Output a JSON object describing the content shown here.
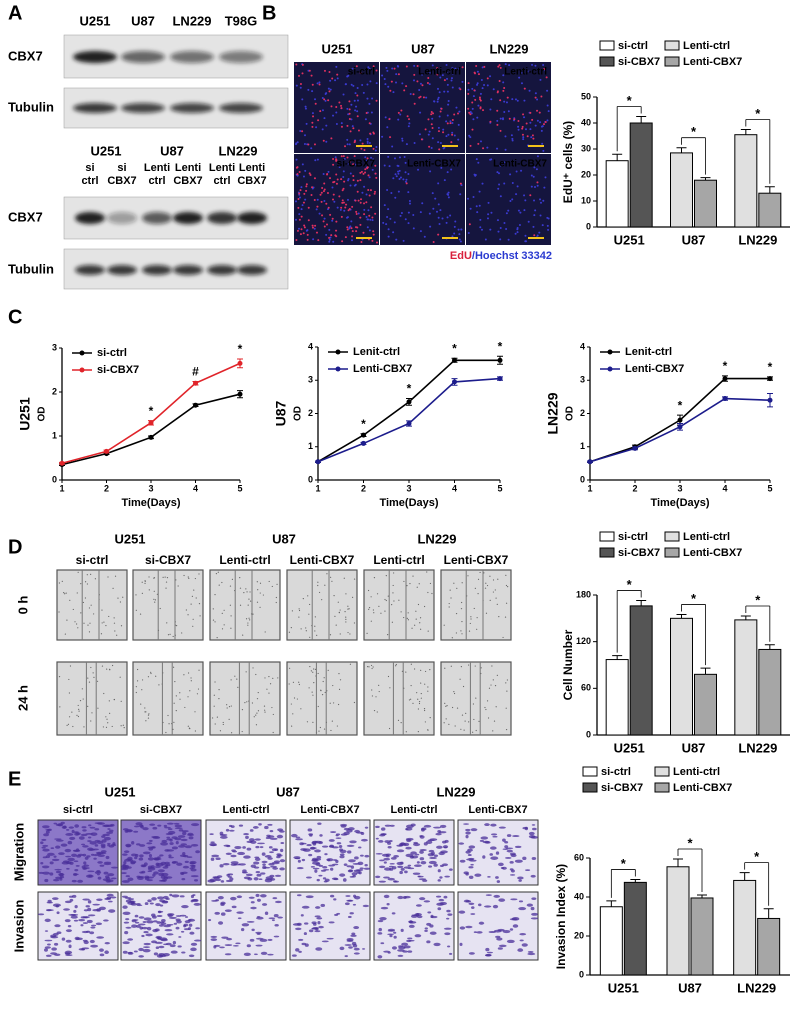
{
  "chart_data": [
    {
      "type": "bar",
      "ylabel": "EdU⁺ cells (%)",
      "categories": [
        "U251",
        "U87",
        "LN229"
      ],
      "series": [
        {
          "name": "si-ctrl",
          "color": "#ffffff",
          "values": [
            25.5,
            null,
            null
          ],
          "errors": [
            2.5,
            null,
            null
          ]
        },
        {
          "name": "si-CBX7",
          "color": "#555555",
          "values": [
            40,
            null,
            null
          ],
          "errors": [
            2.5,
            null,
            null
          ]
        },
        {
          "name": "Lenti-ctrl",
          "color": "#e0e0e0",
          "values": [
            null,
            28.5,
            35.5
          ],
          "errors": [
            null,
            2,
            2
          ]
        },
        {
          "name": "Lenti-CBX7",
          "color": "#a6a6a6",
          "values": [
            null,
            18,
            13
          ],
          "errors": [
            null,
            1,
            2.5
          ]
        }
      ],
      "ylim": [
        0,
        50
      ],
      "yticks": [
        0,
        10,
        20,
        30,
        40,
        50
      ],
      "annotations": [
        "*",
        "*",
        "*"
      ]
    },
    {
      "type": "line",
      "row_label": "U251",
      "ylabel": "OD",
      "xlabel": "Time(Days)",
      "x": [
        1,
        2,
        3,
        4,
        5
      ],
      "series": [
        {
          "name": "si-ctrl",
          "color": "#000000",
          "values": [
            0.35,
            0.6,
            0.97,
            1.7,
            1.95
          ],
          "errors": [
            0.02,
            0.02,
            0.03,
            0.03,
            0.08
          ]
        },
        {
          "name": "si-CBX7",
          "color": "#e0242a",
          "values": [
            0.38,
            0.65,
            1.3,
            2.2,
            2.65
          ],
          "errors": [
            0.02,
            0.03,
            0.05,
            0.04,
            0.1
          ]
        }
      ],
      "xlim": [
        1,
        5
      ],
      "xticks": [
        1,
        2,
        3,
        4,
        5
      ],
      "ylim": [
        0,
        3
      ],
      "yticks": [
        0,
        1,
        2,
        3
      ],
      "annotations": [
        {
          "x": 3,
          "text": "*"
        },
        {
          "x": 4,
          "text": "#"
        },
        {
          "x": 5,
          "text": "*"
        }
      ]
    },
    {
      "type": "line",
      "row_label": "U87",
      "ylabel": "OD",
      "xlabel": "Time(Days)",
      "x": [
        1,
        2,
        3,
        4,
        5
      ],
      "series": [
        {
          "name": "Lenit-ctrl",
          "color": "#000000",
          "values": [
            0.55,
            1.35,
            2.35,
            3.6,
            3.6
          ],
          "errors": [
            0.02,
            0.04,
            0.1,
            0.06,
            0.12
          ]
        },
        {
          "name": "Lenti-CBX7",
          "color": "#1c1c8c",
          "values": [
            0.55,
            1.1,
            1.7,
            2.95,
            3.05
          ],
          "errors": [
            0.02,
            0.03,
            0.08,
            0.1,
            0.05
          ]
        }
      ],
      "xlim": [
        1,
        5
      ],
      "xticks": [
        1,
        2,
        3,
        4,
        5
      ],
      "ylim": [
        0,
        4
      ],
      "yticks": [
        0,
        1,
        2,
        3,
        4
      ],
      "annotations": [
        {
          "x": 2,
          "text": "*"
        },
        {
          "x": 3,
          "text": "*"
        },
        {
          "x": 4,
          "text": "*"
        },
        {
          "x": 5,
          "text": "*"
        }
      ]
    },
    {
      "type": "line",
      "row_label": "LN229",
      "ylabel": "OD",
      "xlabel": "Time(Days)",
      "x": [
        1,
        2,
        3,
        4,
        5
      ],
      "series": [
        {
          "name": "Lenit-ctrl",
          "color": "#000000",
          "values": [
            0.55,
            1.0,
            1.8,
            3.05,
            3.05
          ],
          "errors": [
            0.02,
            0.05,
            0.15,
            0.08,
            0.05
          ]
        },
        {
          "name": "Lenti-CBX7",
          "color": "#1c1c8c",
          "values": [
            0.55,
            0.95,
            1.6,
            2.45,
            2.4
          ],
          "errors": [
            0.02,
            0.04,
            0.1,
            0.05,
            0.2
          ]
        }
      ],
      "xlim": [
        1,
        5
      ],
      "xticks": [
        1,
        2,
        3,
        4,
        5
      ],
      "ylim": [
        0,
        4
      ],
      "yticks": [
        0,
        1,
        2,
        3,
        4
      ],
      "annotations": [
        {
          "x": 3,
          "text": "*"
        },
        {
          "x": 4,
          "text": "*"
        },
        {
          "x": 5,
          "text": "*"
        }
      ]
    },
    {
      "type": "bar",
      "ylabel": "Cell Number",
      "categories": [
        "U251",
        "U87",
        "LN229"
      ],
      "series": [
        {
          "name": "si-ctrl",
          "color": "#ffffff",
          "values": [
            97,
            null,
            null
          ],
          "errors": [
            5,
            null,
            null
          ]
        },
        {
          "name": "si-CBX7",
          "color": "#555555",
          "values": [
            166,
            null,
            null
          ],
          "errors": [
            7,
            null,
            null
          ]
        },
        {
          "name": "Lenti-ctrl",
          "color": "#e0e0e0",
          "values": [
            null,
            150,
            148
          ],
          "errors": [
            null,
            5,
            5
          ]
        },
        {
          "name": "Lenti-CBX7",
          "color": "#a6a6a6",
          "values": [
            null,
            78,
            110
          ],
          "errors": [
            null,
            8,
            6
          ]
        }
      ],
      "ylim": [
        0,
        180
      ],
      "yticks": [
        0,
        60,
        120,
        180
      ],
      "annotations": [
        "*",
        "*",
        "*"
      ]
    },
    {
      "type": "bar",
      "ylabel": "Invasion Index (%)",
      "categories": [
        "U251",
        "U87",
        "LN229"
      ],
      "series": [
        {
          "name": "si-ctrl",
          "color": "#ffffff",
          "values": [
            35,
            null,
            null
          ],
          "errors": [
            3,
            null,
            null
          ]
        },
        {
          "name": "si-CBX7",
          "color": "#555555",
          "values": [
            47.5,
            null,
            null
          ],
          "errors": [
            1.5,
            null,
            null
          ]
        },
        {
          "name": "Lenti-ctrl",
          "color": "#e0e0e0",
          "values": [
            null,
            55.5,
            48.5
          ],
          "errors": [
            null,
            4,
            4
          ]
        },
        {
          "name": "Lenti-CBX7",
          "color": "#a6a6a6",
          "values": [
            null,
            39.5,
            29
          ],
          "errors": [
            null,
            1.5,
            5
          ]
        }
      ],
      "ylim": [
        0,
        60
      ],
      "yticks": [
        0,
        20,
        40,
        60
      ],
      "annotations": [
        "*",
        "*",
        "*"
      ]
    }
  ],
  "figure": {
    "panel_labels": [
      "A",
      "B",
      "C",
      "D",
      "E"
    ],
    "blot_a_top": {
      "cells": [
        "U251",
        "U87",
        "LN229",
        "T98G"
      ],
      "rows": [
        "CBX7",
        "Tubulin"
      ]
    },
    "blot_a_bottom": {
      "groups": [
        "U251",
        "U87",
        "LN229"
      ],
      "lanes": [
        [
          "si",
          "ctrl"
        ],
        [
          "si",
          "CBX7"
        ],
        [
          "Lenti",
          "ctrl"
        ],
        [
          "Lenti",
          "CBX7"
        ],
        [
          "Lenti",
          "ctrl"
        ],
        [
          "Lenti",
          "CBX7"
        ]
      ],
      "rows": [
        "CBX7",
        "Tubulin"
      ]
    },
    "edu_images": {
      "columns": [
        "U251",
        "U87",
        "LN229"
      ],
      "labels": [
        "si-ctrl",
        "Lenti-ctrl",
        "Lenti-ctrl",
        "si-CBX7",
        "Lenti-CBX7",
        "Lenti-CBX7"
      ],
      "stain": [
        "EdU",
        "/Hoechst 33342"
      ]
    },
    "wound": {
      "groups": [
        "U251",
        "U87",
        "LN229"
      ],
      "columns": [
        "si-ctrl",
        "si-CBX7",
        "Lenti-ctrl",
        "Lenti-CBX7",
        "Lenti-ctrl",
        "Lenti-CBX7"
      ],
      "rows": [
        "0 h",
        "24 h"
      ]
    },
    "transwell": {
      "groups": [
        "U251",
        "U87",
        "LN229"
      ],
      "columns": [
        "si-ctrl",
        "si-CBX7",
        "Lenti-ctrl",
        "Lenti-CBX7",
        "Lenti-ctrl",
        "Lenti-CBX7"
      ],
      "rows": [
        "Migration",
        "Invasion"
      ]
    }
  }
}
